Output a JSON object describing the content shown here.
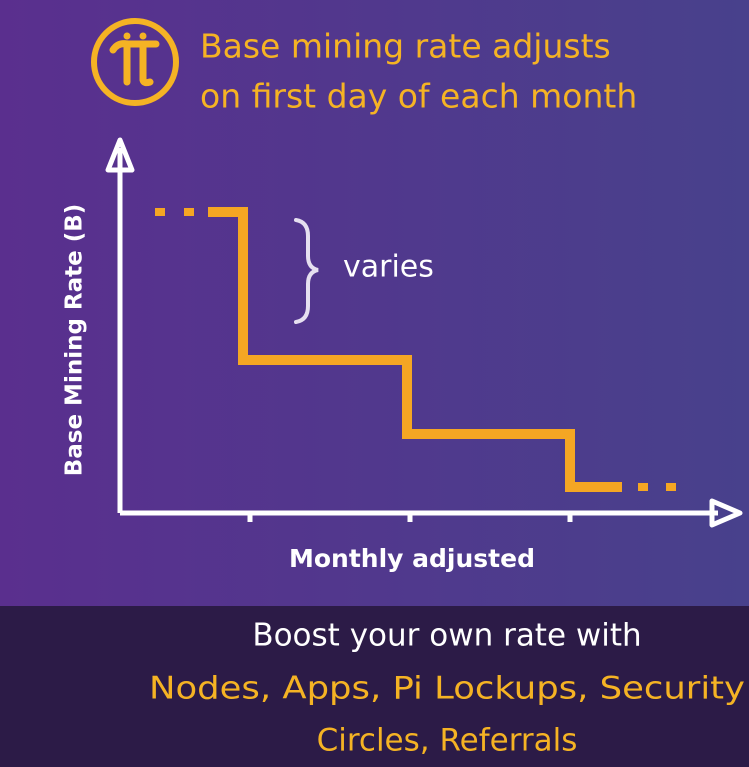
{
  "header": {
    "title_lines": [
      "Base mining rate adjusts",
      "on first day of each month"
    ]
  },
  "diagram": {
    "y_axis_label": "Base Mining Rate (B)",
    "x_axis_label": "Monthly adjusted",
    "annotation": "varies"
  },
  "footer": {
    "lines": [
      "Boost your own rate with",
      "Nodes, Apps, Pi Lockups, Security",
      "Circles, Referrals"
    ]
  }
}
